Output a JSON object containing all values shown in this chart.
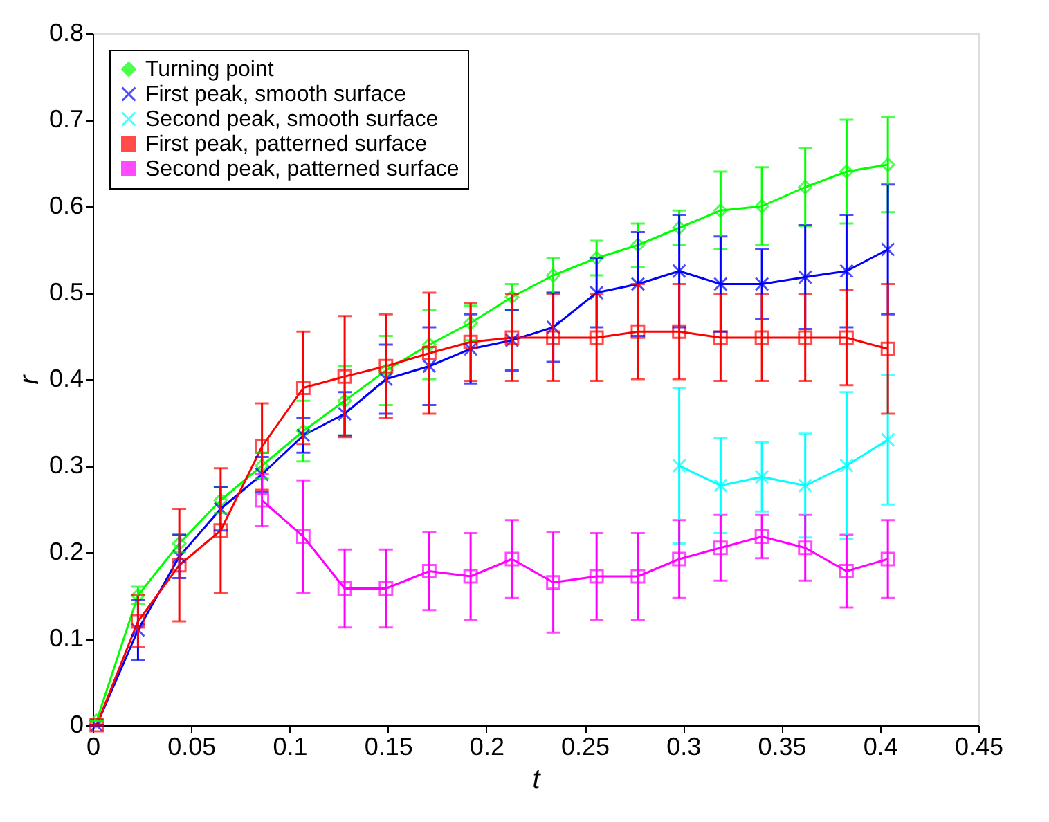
{
  "chart_data": {
    "type": "line",
    "xlabel": "t",
    "ylabel": "r",
    "xlim": [
      0,
      0.45
    ],
    "ylim": [
      0,
      0.8
    ],
    "xticks": [
      0,
      0.05,
      0.1,
      0.15,
      0.2,
      0.25,
      0.3,
      0.35,
      0.4,
      0.45
    ],
    "yticks": [
      0,
      0.1,
      0.2,
      0.3,
      0.4,
      0.5,
      0.6,
      0.7,
      0.8
    ],
    "grid": false,
    "legend": "top left",
    "line_style": "solid",
    "series": [
      {
        "name": "Turning point",
        "color": "#00ff00",
        "marker": "diamond",
        "x": [
          0.002,
          0.023,
          0.044,
          0.065,
          0.086,
          0.107,
          0.128,
          0.149,
          0.171,
          0.192,
          0.213,
          0.234,
          0.256,
          0.277,
          0.298,
          0.319,
          0.34,
          0.362,
          0.383,
          0.404
        ],
        "values": [
          0.005,
          0.15,
          0.21,
          0.26,
          0.3,
          0.34,
          0.375,
          0.41,
          0.44,
          0.465,
          0.495,
          0.52,
          0.54,
          0.555,
          0.575,
          0.595,
          0.6,
          0.622,
          0.64,
          0.648
        ],
        "errors": [
          0,
          0.01,
          0.01,
          0.015,
          0.015,
          0.035,
          0.04,
          0.04,
          0.04,
          0.02,
          0.015,
          0.02,
          0.02,
          0.025,
          0.02,
          0.045,
          0.045,
          0.045,
          0.06,
          0.055
        ]
      },
      {
        "name": "First peak, smooth surface",
        "color": "#0000ff",
        "marker": "cross",
        "x": [
          0.002,
          0.023,
          0.044,
          0.065,
          0.086,
          0.107,
          0.128,
          0.149,
          0.171,
          0.192,
          0.213,
          0.234,
          0.256,
          0.277,
          0.298,
          0.319,
          0.34,
          0.362,
          0.383,
          0.404
        ],
        "values": [
          0,
          0.11,
          0.195,
          0.25,
          0.29,
          0.335,
          0.36,
          0.4,
          0.415,
          0.435,
          0.445,
          0.46,
          0.5,
          0.51,
          0.525,
          0.51,
          0.51,
          0.518,
          0.525,
          0.55
        ],
        "errors": [
          0,
          0.035,
          0.025,
          0.025,
          0.02,
          0.02,
          0.025,
          0.04,
          0.045,
          0.04,
          0.035,
          0.04,
          0.04,
          0.06,
          0.065,
          0.055,
          0.04,
          0.06,
          0.065,
          0.075
        ]
      },
      {
        "name": "Second peak, smooth surface",
        "color": "#00ffff",
        "marker": "cross",
        "x": [
          0.298,
          0.319,
          0.34,
          0.362,
          0.383,
          0.404
        ],
        "values": [
          0.3,
          0.277,
          0.287,
          0.277,
          0.3,
          0.33
        ],
        "errors": [
          0.09,
          0.055,
          0.04,
          0.06,
          0.085,
          0.075
        ]
      },
      {
        "name": "First peak, patterned surface",
        "color": "#ff0000",
        "marker": "square",
        "x": [
          0.002,
          0.023,
          0.044,
          0.065,
          0.086,
          0.107,
          0.128,
          0.149,
          0.171,
          0.192,
          0.213,
          0.234,
          0.256,
          0.277,
          0.298,
          0.319,
          0.34,
          0.362,
          0.383,
          0.404
        ],
        "values": [
          0,
          0.12,
          0.185,
          0.225,
          0.322,
          0.39,
          0.403,
          0.415,
          0.43,
          0.443,
          0.448,
          0.448,
          0.448,
          0.455,
          0.455,
          0.448,
          0.448,
          0.448,
          0.448,
          0.435
        ],
        "errors": [
          0,
          0.03,
          0.065,
          0.072,
          0.05,
          0.065,
          0.07,
          0.06,
          0.07,
          0.045,
          0.05,
          0.05,
          0.05,
          0.055,
          0.055,
          0.05,
          0.05,
          0.05,
          0.055,
          0.075
        ]
      },
      {
        "name": "Second peak, patterned surface",
        "color": "#ff00ff",
        "marker": "square",
        "x": [
          0.086,
          0.107,
          0.128,
          0.149,
          0.171,
          0.192,
          0.213,
          0.234,
          0.256,
          0.277,
          0.298,
          0.319,
          0.34,
          0.362,
          0.383,
          0.404
        ],
        "values": [
          0.26,
          0.218,
          0.158,
          0.158,
          0.178,
          0.172,
          0.192,
          0.165,
          0.172,
          0.172,
          0.192,
          0.205,
          0.218,
          0.205,
          0.178,
          0.192
        ],
        "errors": [
          0.03,
          0.065,
          0.045,
          0.045,
          0.045,
          0.05,
          0.045,
          0.058,
          0.05,
          0.05,
          0.045,
          0.038,
          0.025,
          0.038,
          0.042,
          0.045
        ]
      }
    ]
  }
}
